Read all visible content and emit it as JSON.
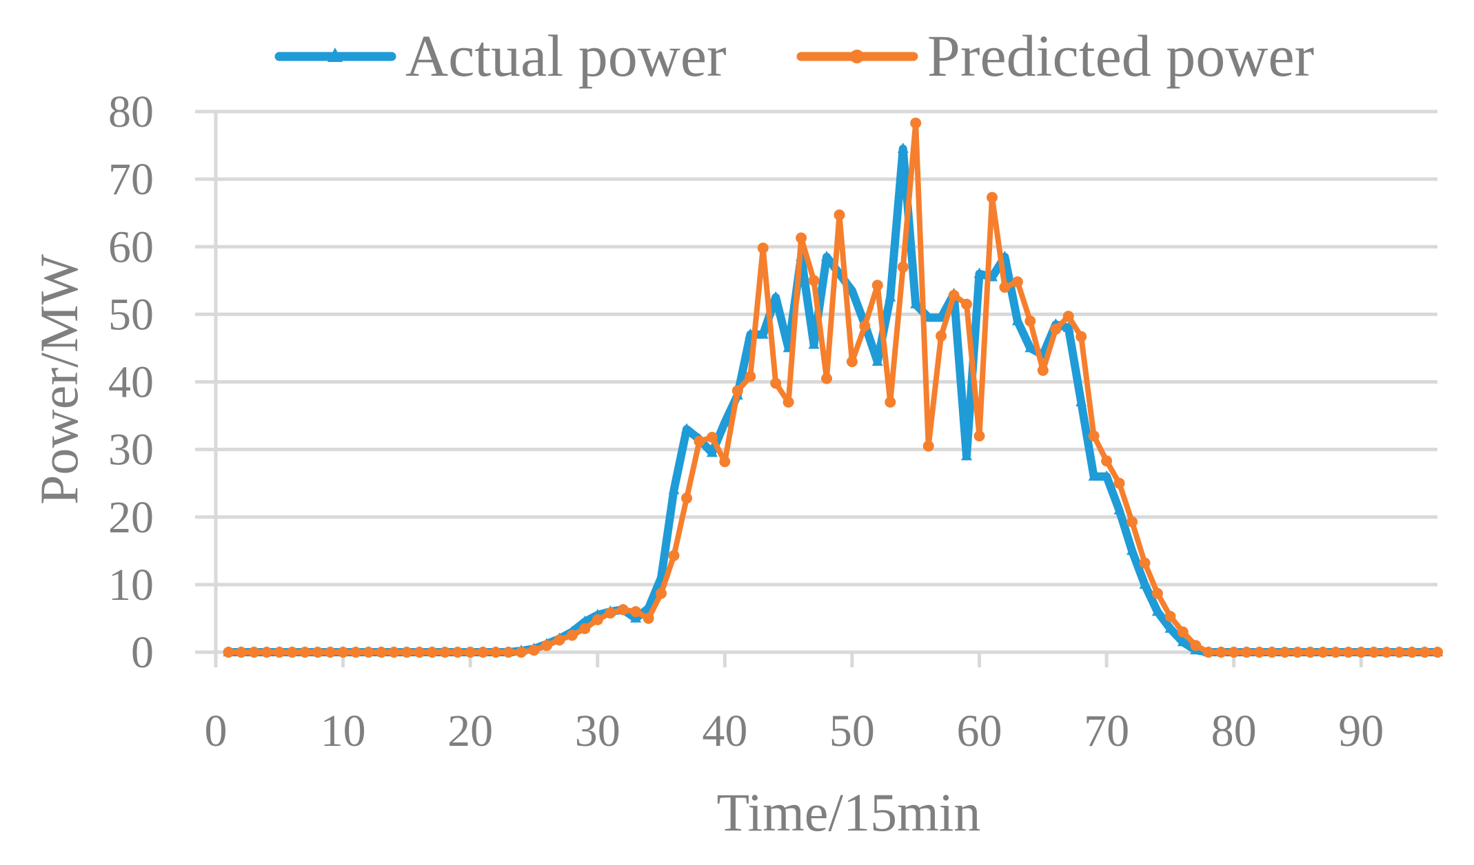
{
  "chart_data": {
    "type": "line",
    "title": "",
    "xlabel": "Time/15min",
    "ylabel": "Power/MW",
    "xlim": [
      0,
      96
    ],
    "ylim": [
      0,
      80
    ],
    "x_ticks": [
      0,
      10,
      20,
      30,
      40,
      50,
      60,
      70,
      80,
      90
    ],
    "y_ticks": [
      0,
      10,
      20,
      30,
      40,
      50,
      60,
      70,
      80
    ],
    "grid": "horizontal",
    "legend_position": "top",
    "series": [
      {
        "name": "Actual power",
        "color": "#1f9bd7",
        "marker": "triangle",
        "x": [
          1,
          2,
          3,
          4,
          5,
          6,
          7,
          8,
          9,
          10,
          11,
          12,
          13,
          14,
          15,
          16,
          17,
          18,
          19,
          20,
          21,
          22,
          23,
          24,
          25,
          26,
          27,
          28,
          29,
          30,
          31,
          32,
          33,
          34,
          35,
          36,
          37,
          38,
          39,
          40,
          41,
          42,
          43,
          44,
          45,
          46,
          47,
          48,
          49,
          50,
          51,
          52,
          53,
          54,
          55,
          56,
          57,
          58,
          59,
          60,
          61,
          62,
          63,
          64,
          65,
          66,
          67,
          68,
          69,
          70,
          71,
          72,
          73,
          74,
          75,
          76,
          77,
          78,
          79,
          80,
          81,
          82,
          83,
          84,
          85,
          86,
          87,
          88,
          89,
          90,
          91,
          92,
          93,
          94,
          95,
          96
        ],
        "values": [
          0,
          0,
          0,
          0,
          0,
          0,
          0,
          0,
          0,
          0,
          0,
          0,
          0,
          0,
          0,
          0,
          0,
          0,
          0,
          0,
          0,
          0,
          0,
          0.2,
          0.5,
          1.2,
          2,
          3,
          4.5,
          5.5,
          6,
          6.3,
          5,
          6.5,
          11,
          24,
          33,
          31.5,
          29.5,
          34,
          38,
          47,
          47,
          52.5,
          45,
          58.5,
          45.5,
          58.5,
          56,
          53.5,
          48.5,
          43,
          52.5,
          74.5,
          51.5,
          49.5,
          49.5,
          53,
          29,
          56,
          55.5,
          58.5,
          49,
          45,
          44,
          48.5,
          48,
          37,
          26,
          26,
          21,
          15,
          10,
          6,
          3.5,
          1.5,
          0.3,
          0,
          0,
          0,
          0,
          0,
          0,
          0,
          0,
          0,
          0,
          0,
          0,
          0,
          0,
          0,
          0,
          0,
          0,
          0
        ]
      },
      {
        "name": "Predicted power",
        "color": "#f57f2d",
        "marker": "circle",
        "x": [
          1,
          2,
          3,
          4,
          5,
          6,
          7,
          8,
          9,
          10,
          11,
          12,
          13,
          14,
          15,
          16,
          17,
          18,
          19,
          20,
          21,
          22,
          23,
          24,
          25,
          26,
          27,
          28,
          29,
          30,
          31,
          32,
          33,
          34,
          35,
          36,
          37,
          38,
          39,
          40,
          41,
          42,
          43,
          44,
          45,
          46,
          47,
          48,
          49,
          50,
          51,
          52,
          53,
          54,
          55,
          56,
          57,
          58,
          59,
          60,
          61,
          62,
          63,
          64,
          65,
          66,
          67,
          68,
          69,
          70,
          71,
          72,
          73,
          74,
          75,
          76,
          77,
          78,
          79,
          80,
          81,
          82,
          83,
          84,
          85,
          86,
          87,
          88,
          89,
          90,
          91,
          92,
          93,
          94,
          95,
          96
        ],
        "values": [
          0,
          0,
          0,
          0,
          0,
          0,
          0,
          0,
          0,
          0,
          0,
          0,
          0,
          0,
          0,
          0,
          0,
          0,
          0,
          0,
          0,
          0,
          0,
          0,
          0.3,
          1,
          1.8,
          2.5,
          3.5,
          4.8,
          5.8,
          6.3,
          6,
          5,
          8.7,
          14.3,
          22.8,
          31.2,
          31.8,
          28.2,
          38.7,
          40.8,
          59.8,
          39.8,
          37,
          61.3,
          55,
          40.5,
          64.7,
          43,
          48.3,
          54.3,
          37,
          57,
          78.3,
          30.5,
          46.8,
          52.8,
          51.5,
          32,
          67.3,
          54,
          54.8,
          49,
          41.7,
          47.8,
          49.7,
          46.7,
          32,
          28.3,
          25,
          19.3,
          13.2,
          8.7,
          5.3,
          3,
          1,
          0,
          0,
          0,
          0,
          0,
          0,
          0,
          0,
          0,
          0,
          0,
          0,
          0,
          0,
          0,
          0,
          0,
          0,
          0
        ]
      }
    ]
  }
}
